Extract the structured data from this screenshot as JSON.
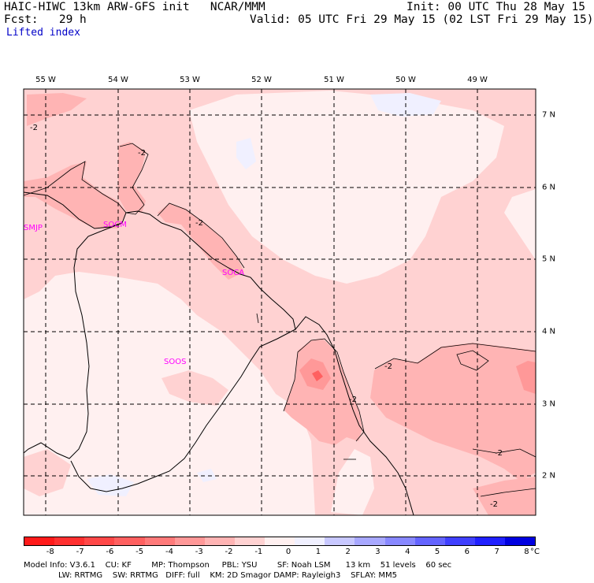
{
  "header": {
    "title_left": "HAIC-HIWC 13km ARW-GFS init   NCAR/MMM",
    "fcst": "Fcst:   29 h",
    "init": "Init: 00 UTC Thu 28 May 15",
    "valid": "Valid: 05 UTC Fri 29 May 15 (02 LST Fri 29 May 15)",
    "field": "Lifted index"
  },
  "axes": {
    "lon_labels": [
      "55 W",
      "54 W",
      "53 W",
      "52 W",
      "51 W",
      "50 W",
      "49 W"
    ],
    "lat_labels": [
      "7 N",
      "6 N",
      "5 N",
      "4 N",
      "3 N",
      "2 N"
    ]
  },
  "stations": [
    "SMJP",
    "SOCM",
    "SOCA",
    "SOOS"
  ],
  "contour_labels": [
    "-2",
    "-2",
    "-2",
    "-2",
    "-2",
    "-2",
    "-2"
  ],
  "colorbar": {
    "ticks": [
      "-8",
      "-7",
      "-6",
      "-5",
      "-4",
      "-3",
      "-2",
      "-1",
      "0",
      "1",
      "2",
      "3",
      "4",
      "5",
      "6",
      "7",
      "8"
    ],
    "unit": "°C",
    "colors": [
      "#ff1a1a",
      "#ff3030",
      "#ff4848",
      "#ff6060",
      "#ff7a7a",
      "#ff9898",
      "#ffb4b4",
      "#ffd2d2",
      "#fff0f0",
      "#f0f0ff",
      "#c8c8ff",
      "#a8a8ff",
      "#8888ff",
      "#6464ff",
      "#4040ff",
      "#2020ff",
      "#0000e0"
    ]
  },
  "footer": {
    "line1": "Model Info: V3.6.1    CU: KF        MP: Thompson     PBL: YSU        SF: Noah LSM      13 km    51 levels    60 sec",
    "line2": "LW: RRTMG    SW: RRTMG   DIFF: full    KM: 2D Smagor DAMP: Rayleigh3    SFLAY: MM5"
  },
  "map_colors": {
    "background": "#fff0f0",
    "light": "#ffd2d2",
    "medium": "#ffb4b4",
    "dark": "#ff9898",
    "darkest": "#ff6060",
    "blue": "#f0f0ff"
  }
}
